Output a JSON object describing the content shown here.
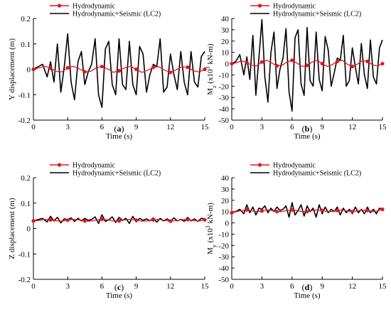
{
  "chart_data": [
    {
      "type": "line",
      "panel": "(a)",
      "panel_letter": "a",
      "xlabel": "Time (s)",
      "ylabel": "Y displacement (m)",
      "xlim": [
        0,
        15
      ],
      "ylim": [
        -0.2,
        0.2
      ],
      "xticks": [
        0,
        3,
        6,
        9,
        12,
        15
      ],
      "yticks": [
        -0.2,
        -0.1,
        0,
        0.1,
        0.2
      ],
      "series": [
        {
          "name": "Hydrodynamic",
          "color": "#e8141b",
          "marker": "circle",
          "x": [
            0,
            0.5,
            1,
            1.5,
            2,
            2.5,
            3,
            3.5,
            4,
            4.5,
            5,
            5.5,
            6,
            6.5,
            7,
            7.5,
            8,
            8.5,
            9,
            9.5,
            10,
            10.5,
            11,
            11.5,
            12,
            12.5,
            13,
            13.5,
            14,
            14.5,
            15
          ],
          "y": [
            0,
            0.006,
            0.012,
            0.004,
            -0.008,
            -0.01,
            0.006,
            0.012,
            0.002,
            -0.01,
            -0.008,
            0.006,
            0.011,
            0.002,
            -0.012,
            -0.006,
            0.006,
            0.012,
            0,
            -0.012,
            -0.004,
            0.008,
            0.01,
            -0.004,
            -0.012,
            -0.002,
            0.01,
            0.008,
            -0.006,
            -0.01,
            0
          ]
        },
        {
          "name": "Hydrodynamic+Seismic (LC2)",
          "color": "#000000",
          "marker": "none",
          "x": [
            0,
            0.4,
            0.8,
            1.2,
            1.5,
            1.8,
            2.1,
            2.4,
            2.7,
            3.0,
            3.3,
            3.6,
            3.9,
            4.2,
            4.5,
            4.8,
            5.1,
            5.4,
            5.7,
            6.0,
            6.3,
            6.6,
            6.9,
            7.2,
            7.5,
            7.8,
            8.1,
            8.4,
            8.7,
            9.0,
            9.3,
            9.6,
            9.9,
            10.2,
            10.5,
            10.8,
            11.1,
            11.4,
            11.7,
            12.0,
            12.3,
            12.6,
            12.9,
            13.2,
            13.5,
            13.8,
            14.1,
            14.4,
            14.7,
            15.0
          ],
          "y": [
            0,
            0.01,
            0.02,
            -0.03,
            0.03,
            -0.05,
            0.1,
            -0.09,
            0.01,
            0.14,
            -0.05,
            -0.12,
            0.03,
            0.07,
            -0.06,
            -0.01,
            0.02,
            0.12,
            -0.1,
            -0.15,
            0.08,
            0.11,
            -0.06,
            -0.1,
            0.12,
            -0.06,
            -0.08,
            0.11,
            -0.06,
            -0.1,
            0.09,
            0.06,
            -0.09,
            -0.02,
            0.02,
            0.01,
            0.12,
            -0.09,
            -0.07,
            0.06,
            -0.02,
            -0.08,
            0.07,
            -0.05,
            -0.1,
            0.07,
            -0.05,
            -0.07,
            0.05,
            0.07
          ]
        }
      ]
    },
    {
      "type": "line",
      "panel": "(b)",
      "panel_letter": "b",
      "xlabel": "Time (s)",
      "ylabel_main": "M",
      "ylabel_sub": "z",
      "ylabel_open": "(x10",
      "ylabel_exp": "3",
      "ylabel_unit": "kN-m)",
      "xlim": [
        0,
        15
      ],
      "ylim": [
        -50,
        40
      ],
      "xticks": [
        0,
        3,
        6,
        9,
        12,
        15
      ],
      "yticks": [
        -50,
        -40,
        -30,
        -20,
        -10,
        0,
        10,
        20,
        30,
        40
      ],
      "series": [
        {
          "name": "Hydrodynamic",
          "color": "#e8141b",
          "marker": "circle",
          "x": [
            0,
            0.5,
            1,
            1.5,
            2,
            2.5,
            3,
            3.5,
            4,
            4.5,
            5,
            5.5,
            6,
            6.5,
            7,
            7.5,
            8,
            8.5,
            9,
            9.5,
            10,
            10.5,
            11,
            11.5,
            12,
            12.5,
            13,
            13.5,
            14,
            14.5,
            15
          ],
          "y": [
            0,
            1,
            2.5,
            1,
            -1.5,
            -2,
            1.5,
            3,
            0.5,
            -2,
            -1.5,
            1.5,
            3,
            0.5,
            -2.5,
            -1.5,
            1.5,
            3,
            0,
            -2.5,
            -1,
            2,
            3,
            -0.5,
            -2.5,
            -0.5,
            2.5,
            2,
            -1,
            -2,
            0
          ]
        },
        {
          "name": "Hydrodynamic+Seismic (LC2)",
          "color": "#000000",
          "marker": "none",
          "x": [
            0,
            0.4,
            0.8,
            1.2,
            1.5,
            1.8,
            2.1,
            2.4,
            2.7,
            3.0,
            3.3,
            3.6,
            3.9,
            4.2,
            4.5,
            4.8,
            5.1,
            5.4,
            5.7,
            6.0,
            6.3,
            6.6,
            6.9,
            7.2,
            7.5,
            7.8,
            8.1,
            8.4,
            8.7,
            9.0,
            9.3,
            9.6,
            9.9,
            10.2,
            10.5,
            10.8,
            11.1,
            11.4,
            11.7,
            12.0,
            12.3,
            12.6,
            12.9,
            13.2,
            13.5,
            13.8,
            14.1,
            14.4,
            14.7,
            15.0
          ],
          "y": [
            0,
            2,
            8,
            -10,
            6,
            -14,
            25,
            -28,
            5,
            39,
            -12,
            -34,
            10,
            28,
            -22,
            -5,
            5,
            31,
            -25,
            -42,
            23,
            30,
            -18,
            -28,
            32,
            -15,
            -20,
            28,
            -14,
            -24,
            24,
            12,
            -20,
            -8,
            5,
            3,
            25,
            -20,
            -15,
            14,
            -3,
            -18,
            18,
            -10,
            -22,
            21,
            -12,
            -18,
            14,
            21
          ]
        }
      ]
    },
    {
      "type": "line",
      "panel": "(c)",
      "panel_letter": "c",
      "xlabel": "Time (s)",
      "ylabel": "Z displacement (m)",
      "xlim": [
        0,
        15
      ],
      "ylim": [
        -0.2,
        0.2
      ],
      "xticks": [
        0,
        3,
        6,
        9,
        12,
        15
      ],
      "yticks": [
        -0.2,
        -0.1,
        0,
        0.1,
        0.2
      ],
      "series": [
        {
          "name": "Hydrodynamic",
          "color": "#e8141b",
          "marker": "circle",
          "x": [
            0,
            0.5,
            1,
            1.5,
            2,
            2.5,
            3,
            3.5,
            4,
            4.5,
            5,
            5.5,
            6,
            6.5,
            7,
            7.5,
            8,
            8.5,
            9,
            9.5,
            10,
            10.5,
            11,
            11.5,
            12,
            12.5,
            13,
            13.5,
            14,
            14.5,
            15
          ],
          "y": [
            0.03,
            0.032,
            0.036,
            0.034,
            0.03,
            0.029,
            0.033,
            0.036,
            0.034,
            0.03,
            0.029,
            0.033,
            0.036,
            0.034,
            0.029,
            0.03,
            0.034,
            0.036,
            0.033,
            0.029,
            0.03,
            0.034,
            0.036,
            0.032,
            0.029,
            0.031,
            0.035,
            0.035,
            0.031,
            0.03,
            0.034
          ]
        },
        {
          "name": "Hydrodynamic+Seismic (LC2)",
          "color": "#000000",
          "marker": "none",
          "x": [
            0,
            0.4,
            0.8,
            1.2,
            1.5,
            1.8,
            2.1,
            2.4,
            2.7,
            3.0,
            3.3,
            3.6,
            3.9,
            4.2,
            4.5,
            4.8,
            5.1,
            5.4,
            5.7,
            6.0,
            6.3,
            6.6,
            6.9,
            7.2,
            7.5,
            7.8,
            8.1,
            8.4,
            8.7,
            9.0,
            9.3,
            9.6,
            9.9,
            10.2,
            10.5,
            10.8,
            11.1,
            11.4,
            11.7,
            12.0,
            12.3,
            12.6,
            12.9,
            13.2,
            13.5,
            13.8,
            14.1,
            14.4,
            14.7,
            15.0
          ],
          "y": [
            0.03,
            0.035,
            0.04,
            0.026,
            0.048,
            0.03,
            0.044,
            0.022,
            0.038,
            0.034,
            0.042,
            0.028,
            0.04,
            0.03,
            0.04,
            0.032,
            0.036,
            0.046,
            0.02,
            0.054,
            0.028,
            0.034,
            0.046,
            0.024,
            0.044,
            0.032,
            0.04,
            0.02,
            0.048,
            0.026,
            0.04,
            0.032,
            0.038,
            0.03,
            0.042,
            0.025,
            0.04,
            0.03,
            0.038,
            0.028,
            0.042,
            0.03,
            0.036,
            0.028,
            0.044,
            0.03,
            0.038,
            0.028,
            0.04,
            0.038
          ]
        }
      ]
    },
    {
      "type": "line",
      "panel": "(d)",
      "panel_letter": "d",
      "xlabel": "Time (s)",
      "ylabel_main": "M",
      "ylabel_sub": "y",
      "ylabel_open": "(x10",
      "ylabel_exp": "3",
      "ylabel_unit": "kN-m)",
      "xlim": [
        0,
        15
      ],
      "ylim": [
        -50,
        40
      ],
      "xticks": [
        0,
        3,
        6,
        9,
        12,
        15
      ],
      "yticks": [
        -50,
        -40,
        -30,
        -20,
        -10,
        0,
        10,
        20,
        30,
        40
      ],
      "series": [
        {
          "name": "Hydrodynamic",
          "color": "#e8141b",
          "marker": "circle",
          "x": [
            0,
            0.5,
            1,
            1.5,
            2,
            2.5,
            3,
            3.5,
            4,
            4.5,
            5,
            5.5,
            6,
            6.5,
            7,
            7.5,
            8,
            8.5,
            9,
            9.5,
            10,
            10.5,
            11,
            11.5,
            12,
            12.5,
            13,
            13.5,
            14,
            14.5,
            15
          ],
          "y": [
            9,
            10,
            11,
            11.5,
            10.5,
            10,
            10.5,
            11.5,
            11,
            10,
            10,
            11,
            11.5,
            11,
            10,
            10,
            11,
            11.5,
            11,
            10,
            10,
            11,
            11.5,
            10.5,
            10,
            10.5,
            11.5,
            11,
            10,
            10.5,
            12
          ]
        },
        {
          "name": "Hydrodynamic+Seismic (LC2)",
          "color": "#000000",
          "marker": "none",
          "x": [
            0,
            0.4,
            0.8,
            1.2,
            1.5,
            1.8,
            2.1,
            2.4,
            2.7,
            3.0,
            3.3,
            3.6,
            3.9,
            4.2,
            4.5,
            4.8,
            5.1,
            5.4,
            5.7,
            6.0,
            6.3,
            6.6,
            6.9,
            7.2,
            7.5,
            7.8,
            8.1,
            8.4,
            8.7,
            9.0,
            9.3,
            9.6,
            9.9,
            10.2,
            10.5,
            10.8,
            11.1,
            11.4,
            11.7,
            12.0,
            12.3,
            12.6,
            12.9,
            13.2,
            13.5,
            13.8,
            14.1,
            14.4,
            14.7,
            15.0
          ],
          "y": [
            9,
            10,
            12,
            8,
            16,
            9,
            14,
            7,
            13,
            12,
            15,
            9,
            13,
            10,
            14,
            11,
            12,
            15,
            5,
            18,
            7,
            11,
            16,
            6,
            15,
            10,
            13,
            5,
            16,
            8,
            14,
            9,
            12,
            10,
            14,
            7,
            13,
            9,
            12,
            8,
            14,
            9,
            12,
            8,
            14,
            9,
            12,
            8,
            13,
            12
          ]
        }
      ]
    }
  ]
}
